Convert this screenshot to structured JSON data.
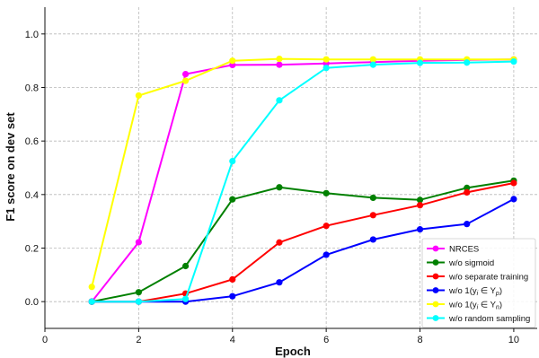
{
  "chart_data": {
    "type": "line",
    "title": "",
    "xlabel": "Epoch",
    "ylabel": "F1 score on dev set",
    "xlim": [
      0,
      10.5
    ],
    "ylim": [
      -0.1,
      1.1
    ],
    "xticks": [
      0,
      2,
      4,
      6,
      8,
      10
    ],
    "yticks": [
      0.0,
      0.2,
      0.4,
      0.6,
      0.8,
      1.0
    ],
    "x": [
      1,
      2,
      3,
      4,
      5,
      6,
      7,
      8,
      9,
      10
    ],
    "grid": true,
    "legend_position": "bottom-right",
    "series": [
      {
        "name": "NRCES",
        "color": "#ff00ff",
        "values": [
          0.0,
          0.222,
          0.85,
          0.884,
          0.885,
          0.89,
          0.895,
          0.9,
          0.903,
          0.905
        ]
      },
      {
        "name": "w/o sigmoid",
        "color": "#008000",
        "values": [
          0.0,
          0.035,
          0.133,
          0.382,
          0.427,
          0.405,
          0.388,
          0.38,
          0.425,
          0.452
        ]
      },
      {
        "name": "w/o separate training",
        "color": "#ff0000",
        "values": [
          0.0,
          0.0,
          0.03,
          0.083,
          0.221,
          0.283,
          0.323,
          0.36,
          0.408,
          0.443
        ]
      },
      {
        "name": "w/o 1(y_i ∈ Y_p)",
        "color": "#0000ff",
        "values": [
          0.0,
          0.0,
          0.0,
          0.02,
          0.072,
          0.175,
          0.232,
          0.27,
          0.29,
          0.383
        ]
      },
      {
        "name": "w/o 1(y_i ∈ Y_n)",
        "color": "#ffff00",
        "values": [
          0.055,
          0.77,
          0.825,
          0.9,
          0.907,
          0.905,
          0.905,
          0.905,
          0.905,
          0.905
        ]
      },
      {
        "name": "w/o random sampling",
        "color": "#00ffff",
        "values": [
          0.0,
          0.0,
          0.01,
          0.525,
          0.752,
          0.873,
          0.885,
          0.892,
          0.893,
          0.897
        ]
      }
    ],
    "legend": {
      "entries": [
        {
          "text": "NRCES",
          "sub": "",
          "after": "",
          "sub2": "",
          "after2": ""
        },
        {
          "text": "w/o sigmoid",
          "sub": "",
          "after": "",
          "sub2": "",
          "after2": ""
        },
        {
          "text": "w/o separate training",
          "sub": "",
          "after": "",
          "sub2": "",
          "after2": ""
        },
        {
          "text": "w/o 1(y",
          "sub": "i",
          "after": " ∈ Y",
          "sub2": "p",
          "after2": ")"
        },
        {
          "text": "w/o 1(y",
          "sub": "i",
          "after": " ∈ Y",
          "sub2": "n",
          "after2": ")"
        },
        {
          "text": "w/o random sampling",
          "sub": "",
          "after": "",
          "sub2": "",
          "after2": ""
        }
      ]
    }
  }
}
